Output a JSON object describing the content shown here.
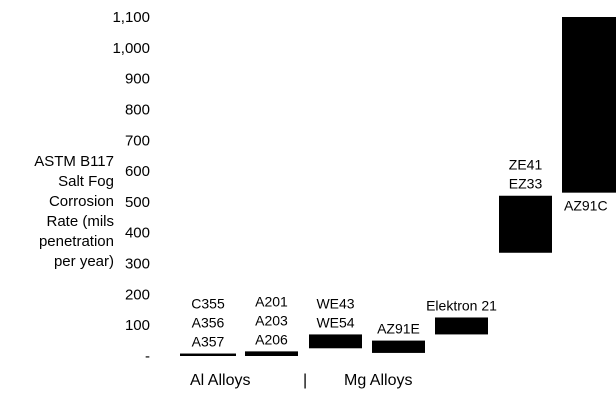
{
  "chart_data": {
    "type": "bar",
    "title": "",
    "ylabel_lines": [
      "ASTM B117",
      "Salt Fog",
      "Corrosion",
      "Rate (mils",
      "penetration",
      "per year)"
    ],
    "ylim": [
      0,
      1100
    ],
    "yticks": [
      {
        "value": 0,
        "label": "-"
      },
      {
        "value": 100,
        "label": "100"
      },
      {
        "value": 200,
        "label": "200"
      },
      {
        "value": 300,
        "label": "300"
      },
      {
        "value": 400,
        "label": "400"
      },
      {
        "value": 500,
        "label": "500"
      },
      {
        "value": 600,
        "label": "600"
      },
      {
        "value": 700,
        "label": "700"
      },
      {
        "value": 800,
        "label": "800"
      },
      {
        "value": 900,
        "label": "900"
      },
      {
        "value": 1000,
        "label": "1,000"
      },
      {
        "value": 1100,
        "label": "1,100"
      }
    ],
    "bar_color": "#000000",
    "bars": [
      {
        "labels": [
          "C355",
          "A356",
          "A357"
        ],
        "low": 0,
        "high": 8
      },
      {
        "labels": [
          "A201",
          "A203",
          "A206"
        ],
        "low": 0,
        "high": 15
      },
      {
        "labels": [
          "WE43",
          "WE54"
        ],
        "low": 25,
        "high": 70
      },
      {
        "labels": [
          "AZ91E"
        ],
        "low": 10,
        "high": 50
      },
      {
        "labels": [
          "Elektron 21"
        ],
        "low": 70,
        "high": 125
      },
      {
        "labels": [
          "ZE41",
          "EZ33"
        ],
        "low": 335,
        "high": 520
      },
      {
        "labels": [
          "AZ91C"
        ],
        "low": 530,
        "high": 1100
      }
    ],
    "groups": {
      "al": "Al Alloys",
      "separator": "|",
      "mg": "Mg Alloys"
    }
  }
}
